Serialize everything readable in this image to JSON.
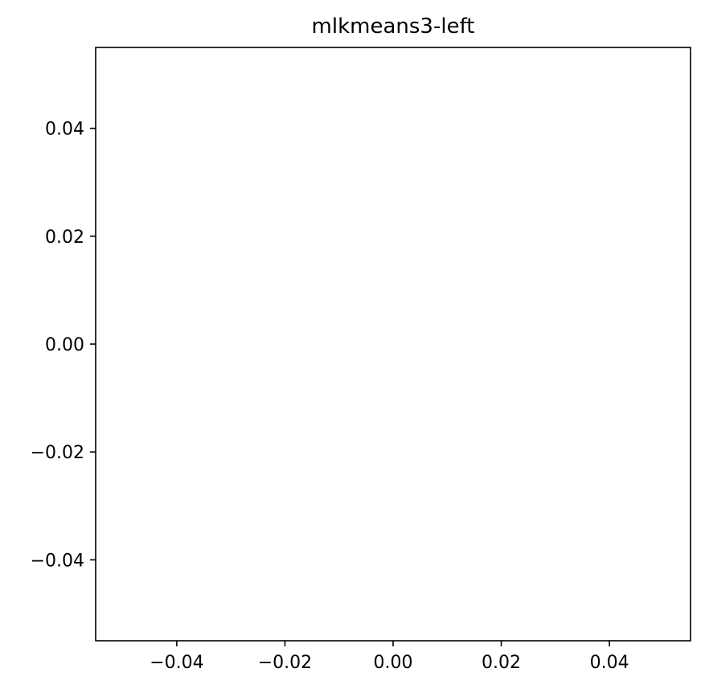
{
  "chart_data": {
    "type": "scatter",
    "title": "mlkmeans3-left",
    "xlabel": "",
    "ylabel": "",
    "xlim": [
      -0.055,
      0.055
    ],
    "ylim": [
      -0.055,
      0.055
    ],
    "xticks": [
      -0.04,
      -0.02,
      0.0,
      0.02,
      0.04
    ],
    "yticks": [
      -0.04,
      -0.02,
      0.0,
      0.02,
      0.04
    ],
    "xtick_labels": [
      "−0.04",
      "−0.02",
      "0.00",
      "0.02",
      "0.04"
    ],
    "ytick_labels": [
      "−0.04",
      "−0.02",
      "0.00",
      "0.02",
      "0.04"
    ],
    "grid": false,
    "legend": "none",
    "series": [
      {
        "x": [],
        "y": []
      }
    ]
  }
}
